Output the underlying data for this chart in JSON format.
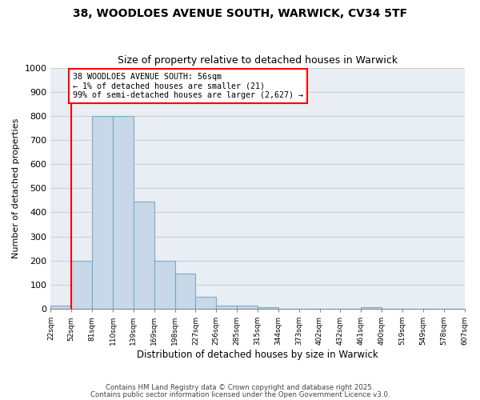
{
  "title1": "38, WOODLOES AVENUE SOUTH, WARWICK, CV34 5TF",
  "title2": "Size of property relative to detached houses in Warwick",
  "xlabel": "Distribution of detached houses by size in Warwick",
  "ylabel": "Number of detached properties",
  "bin_labels": [
    "22sqm",
    "52sqm",
    "81sqm",
    "110sqm",
    "139sqm",
    "169sqm",
    "198sqm",
    "227sqm",
    "256sqm",
    "285sqm",
    "315sqm",
    "344sqm",
    "373sqm",
    "402sqm",
    "432sqm",
    "461sqm",
    "490sqm",
    "519sqm",
    "549sqm",
    "578sqm",
    "607sqm"
  ],
  "bar_values": [
    15,
    200,
    800,
    800,
    445,
    200,
    145,
    50,
    15,
    12,
    8,
    0,
    0,
    0,
    0,
    8,
    0,
    0,
    0,
    0
  ],
  "bar_color": "#c8d8e8",
  "bar_edge_color": "#7aaac8",
  "annotation_text": "38 WOODLOES AVENUE SOUTH: 56sqm\n← 1% of detached houses are smaller (21)\n99% of semi-detached houses are larger (2,627) →",
  "ylim": [
    0,
    1000
  ],
  "yticks": [
    0,
    100,
    200,
    300,
    400,
    500,
    600,
    700,
    800,
    900,
    1000
  ],
  "grid_color": "#c8d0d8",
  "bg_color": "#e8eef4",
  "footer1": "Contains HM Land Registry data © Crown copyright and database right 2025.",
  "footer2": "Contains public sector information licensed under the Open Government Licence v3.0."
}
